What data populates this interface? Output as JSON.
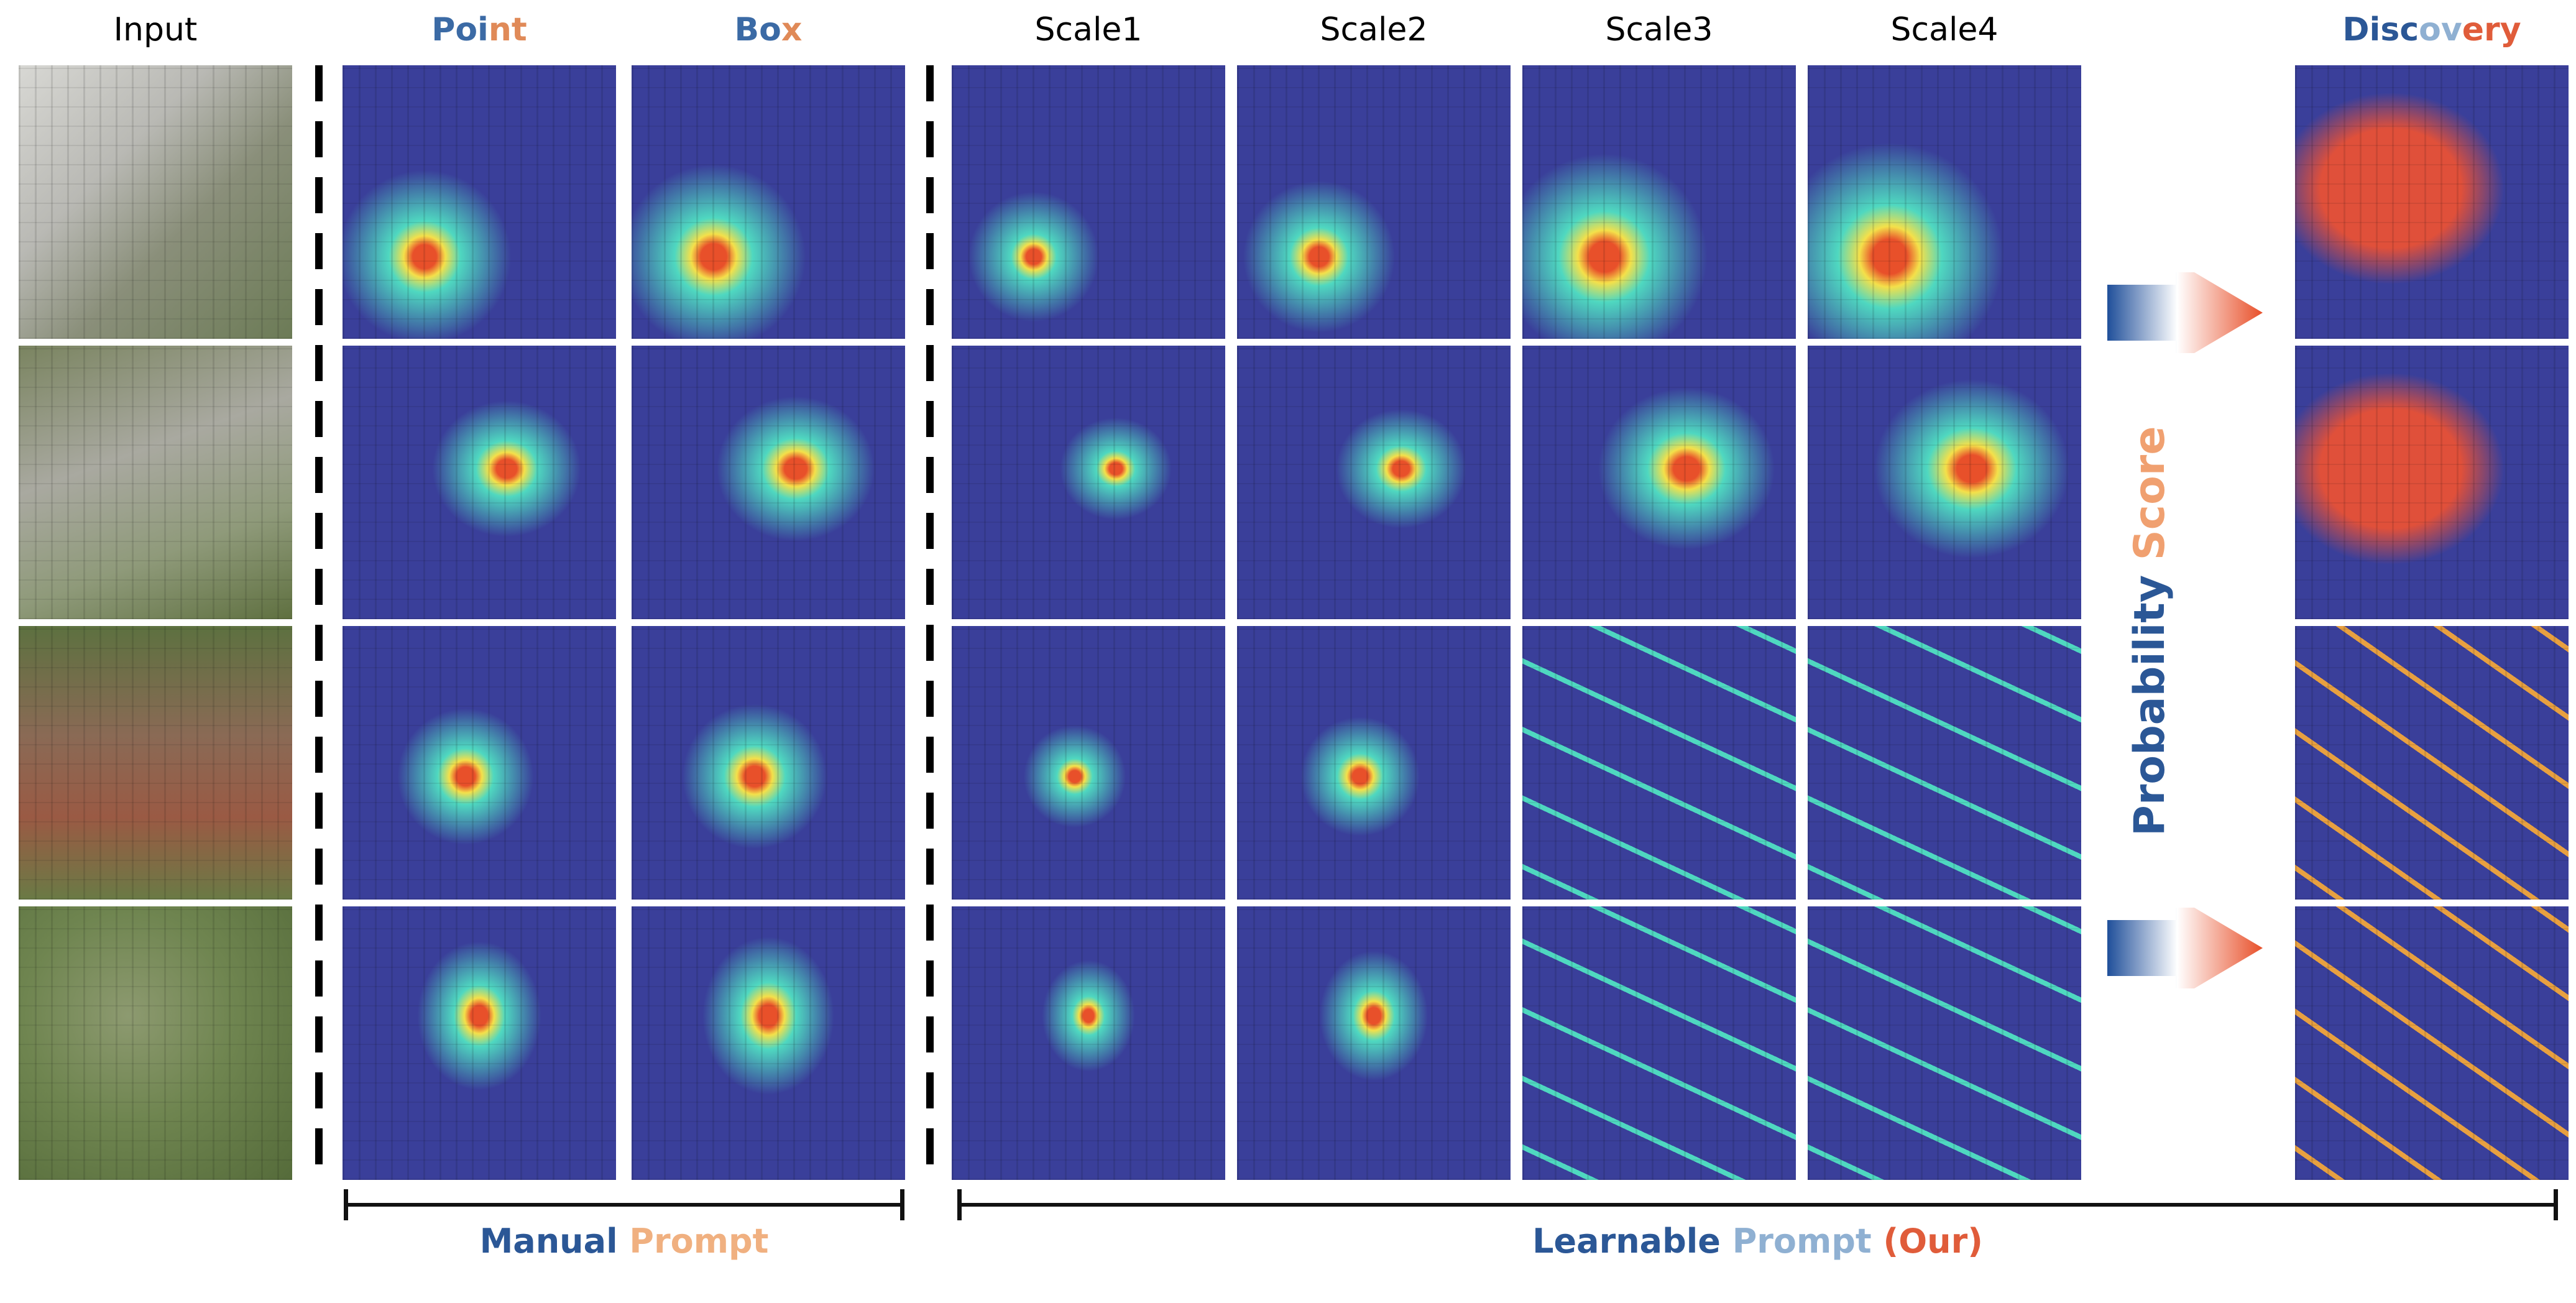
{
  "headers": {
    "input": "Input",
    "point": [
      {
        "t": "Poi",
        "c": "#3b6aa5"
      },
      {
        "t": "nt",
        "c": "#e08a58"
      }
    ],
    "box": [
      {
        "t": "Bo",
        "c": "#3b6aa5"
      },
      {
        "t": "x",
        "c": "#e08a58"
      }
    ],
    "scale1": "Scale1",
    "scale2": "Scale2",
    "scale3": "Scale3",
    "scale4": "Scale4",
    "discovery": [
      {
        "t": "Disc",
        "c": "#2b5796"
      },
      {
        "t": "ov",
        "c": "#8fb0d2"
      },
      {
        "t": "ery",
        "c": "#e05c3a"
      }
    ]
  },
  "side_label": {
    "probability": "Probability",
    "score": "Score",
    "probability_color": "#2b5796",
    "score_color": "#f0a070"
  },
  "footer": {
    "manual": "Manual",
    "manual_prompt": "Prompt",
    "learnable": "Learnable",
    "learnable_prompt": "Prompt",
    "ours": "(Our)",
    "colors": {
      "dark_blue": "#2b5796",
      "light_blue": "#8fb0d2",
      "peach": "#f0b080",
      "orange": "#e05c3a"
    }
  },
  "colors": {
    "heat_low": "#3a3f9a",
    "heat_mid": "#4fd8c0",
    "heat_high": "#f4e04a",
    "heat_peak": "#e8502a",
    "discovery_red": "#e0503a",
    "aerial_green": "#5a7a3a",
    "aerial_gray": "#a8a8a0"
  }
}
